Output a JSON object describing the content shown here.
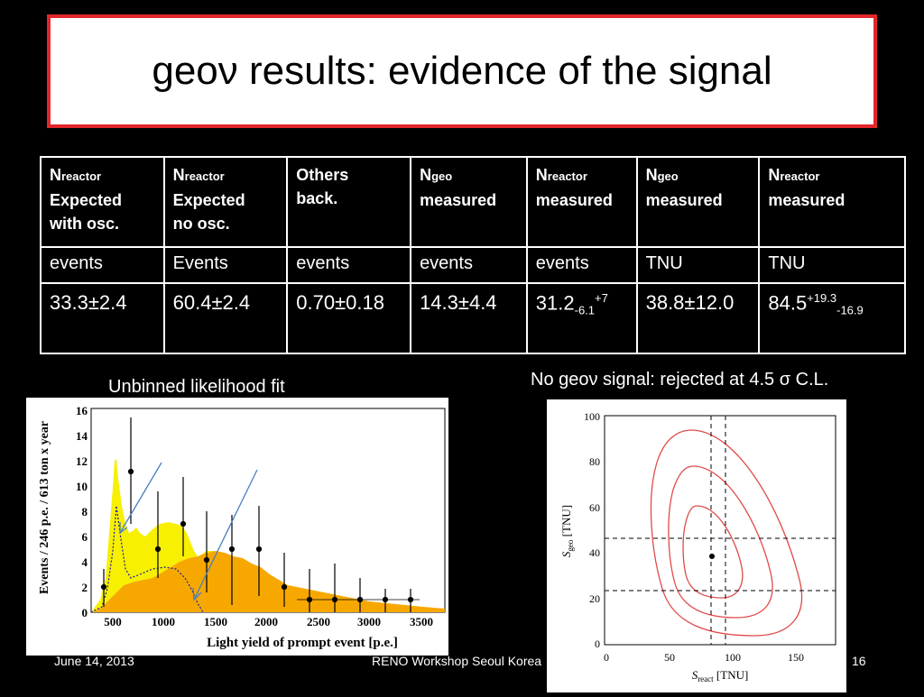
{
  "title": "geoν results: evidence of the signal",
  "table": {
    "headers": [
      {
        "n": "N",
        "sub": "reactor",
        "line2": "Expected",
        "line3": "with osc."
      },
      {
        "n": "N",
        "sub": "reactor",
        "line2": "Expected",
        "line3": "no osc."
      },
      {
        "n": "Others",
        "sub": "",
        "line2": "back.",
        "line3": ""
      },
      {
        "n": "N",
        "sub": "geo",
        "line2": "measured",
        "line3": ""
      },
      {
        "n": "N",
        "sub": "reactor",
        "line2": "measured",
        "line3": ""
      },
      {
        "n": "N",
        "sub": "geo",
        "line2": "measured",
        "line3": ""
      },
      {
        "n": "N",
        "sub": "reactor",
        "line2": "measured",
        "line3": ""
      }
    ],
    "units": [
      "events",
      "Events",
      "events",
      "events",
      "events",
      "TNU",
      "TNU"
    ],
    "values": {
      "v1": "33.3±2.4",
      "v2": "60.4±2.4",
      "v3": "0.70±0.18",
      "v4": "14.3±4.4",
      "v5_main": "31.2",
      "v5_sub": "-6.1",
      "v5_sup": "+7",
      "v6": "38.8±12.0",
      "v7_main": "84.5",
      "v7_sup": "+19.3",
      "v7_sub": "-16.9"
    }
  },
  "captions": {
    "left": "Unbinned likelihood fit",
    "right": "No  geoν signal: rejected at 4.5 σ C.L."
  },
  "left_plot": {
    "ylabel": "Events / 246 p.e. / 613 ton x year",
    "xlabel": "Light yield of prompt event [p.e.]",
    "y_ticks": [
      "0",
      "2",
      "4",
      "6",
      "8",
      "10",
      "12",
      "14",
      "16"
    ],
    "x_ticks": [
      "500",
      "1000",
      "1500",
      "2000",
      "2500",
      "3000",
      "3500"
    ]
  },
  "right_plot": {
    "ylabel": "S",
    "ylabel_sub": "geo",
    "ylabel_unit": " [TNU]",
    "xlabel": "S",
    "xlabel_sub": "react",
    "xlabel_unit": " [TNU]",
    "y_ticks": [
      "0",
      "20",
      "40",
      "60",
      "80",
      "100"
    ],
    "x_ticks": [
      "0",
      "50",
      "100",
      "150"
    ]
  },
  "footer": {
    "date": "June 14, 2013",
    "event": "RENO Workshop Seoul Korea",
    "page": "16"
  }
}
